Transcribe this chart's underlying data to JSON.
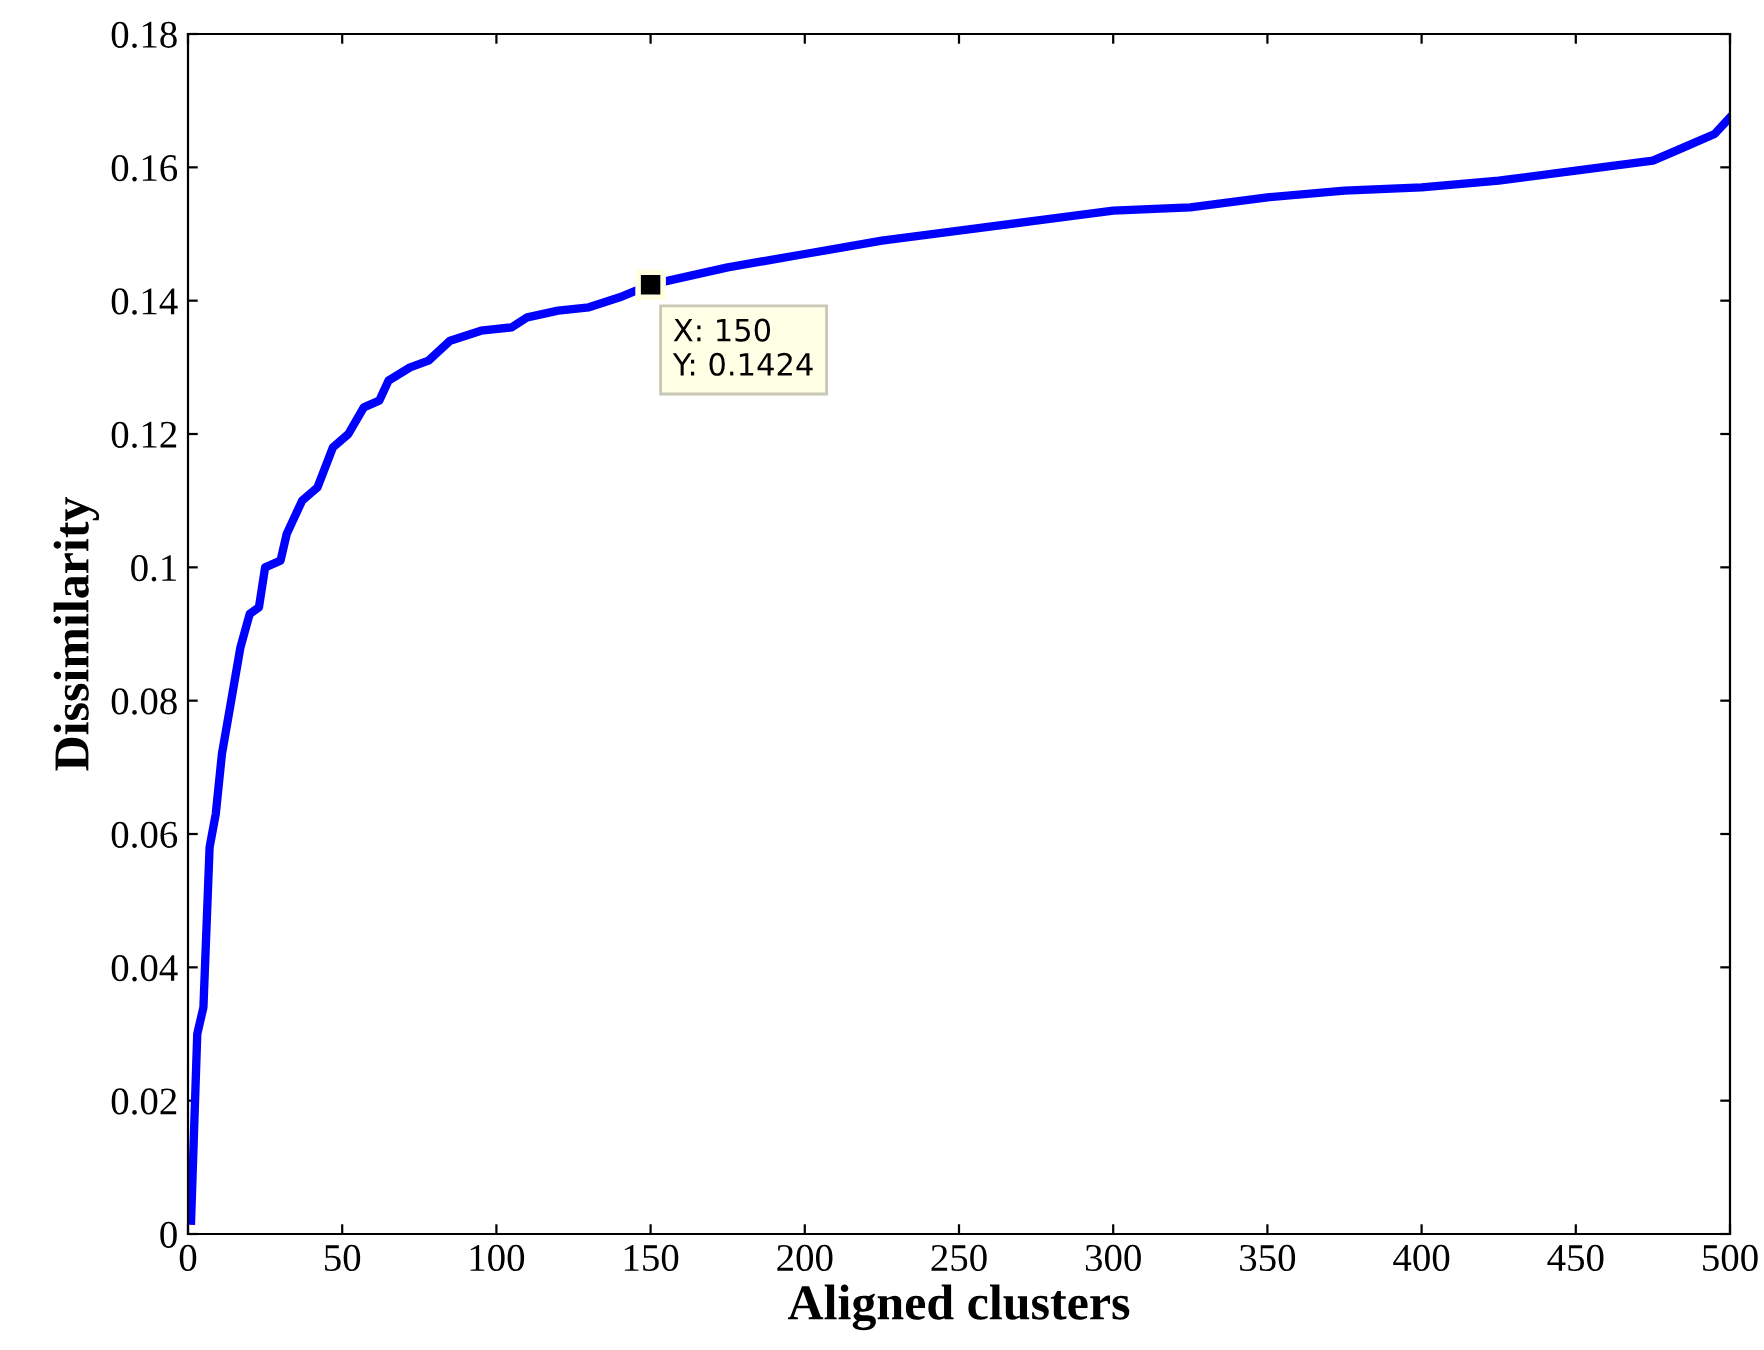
{
  "chart_data": {
    "type": "line",
    "xlabel": "Aligned clusters",
    "ylabel": "Dissimilarity",
    "x": [
      1,
      3,
      5,
      7,
      9,
      11,
      14,
      17,
      20,
      23,
      25,
      30,
      32,
      37,
      42,
      47,
      52,
      57,
      62,
      65,
      72,
      78,
      85,
      95,
      105,
      110,
      120,
      130,
      140,
      150,
      175,
      200,
      225,
      250,
      275,
      300,
      325,
      350,
      375,
      400,
      425,
      450,
      475,
      485,
      495,
      500
    ],
    "series": [
      {
        "color": "#0000ff",
        "values": [
          0.002,
          0.03,
          0.034,
          0.058,
          0.063,
          0.072,
          0.08,
          0.088,
          0.093,
          0.094,
          0.1,
          0.101,
          0.105,
          0.11,
          0.112,
          0.118,
          0.12,
          0.124,
          0.125,
          0.128,
          0.13,
          0.131,
          0.134,
          0.1355,
          0.136,
          0.1375,
          0.1385,
          0.139,
          0.1405,
          0.1424,
          0.145,
          0.147,
          0.149,
          0.1505,
          0.152,
          0.1535,
          0.154,
          0.1555,
          0.1565,
          0.157,
          0.158,
          0.1595,
          0.161,
          0.163,
          0.165,
          0.1675
        ]
      }
    ],
    "xlim": [
      0,
      500
    ],
    "xticks": [
      0,
      50,
      100,
      150,
      200,
      250,
      300,
      350,
      400,
      450,
      500
    ],
    "ylim": [
      0,
      0.18
    ],
    "yticks": [
      0,
      0.02,
      0.04,
      0.06,
      0.08,
      0.1,
      0.12,
      0.14,
      0.16,
      0.18
    ],
    "grid": false,
    "legend": false,
    "marker": "none",
    "line_style": "solid",
    "annotations": [
      {
        "text": "X: 150\nY: 0.1424",
        "x": 150,
        "y": 0.1424
      }
    ]
  }
}
